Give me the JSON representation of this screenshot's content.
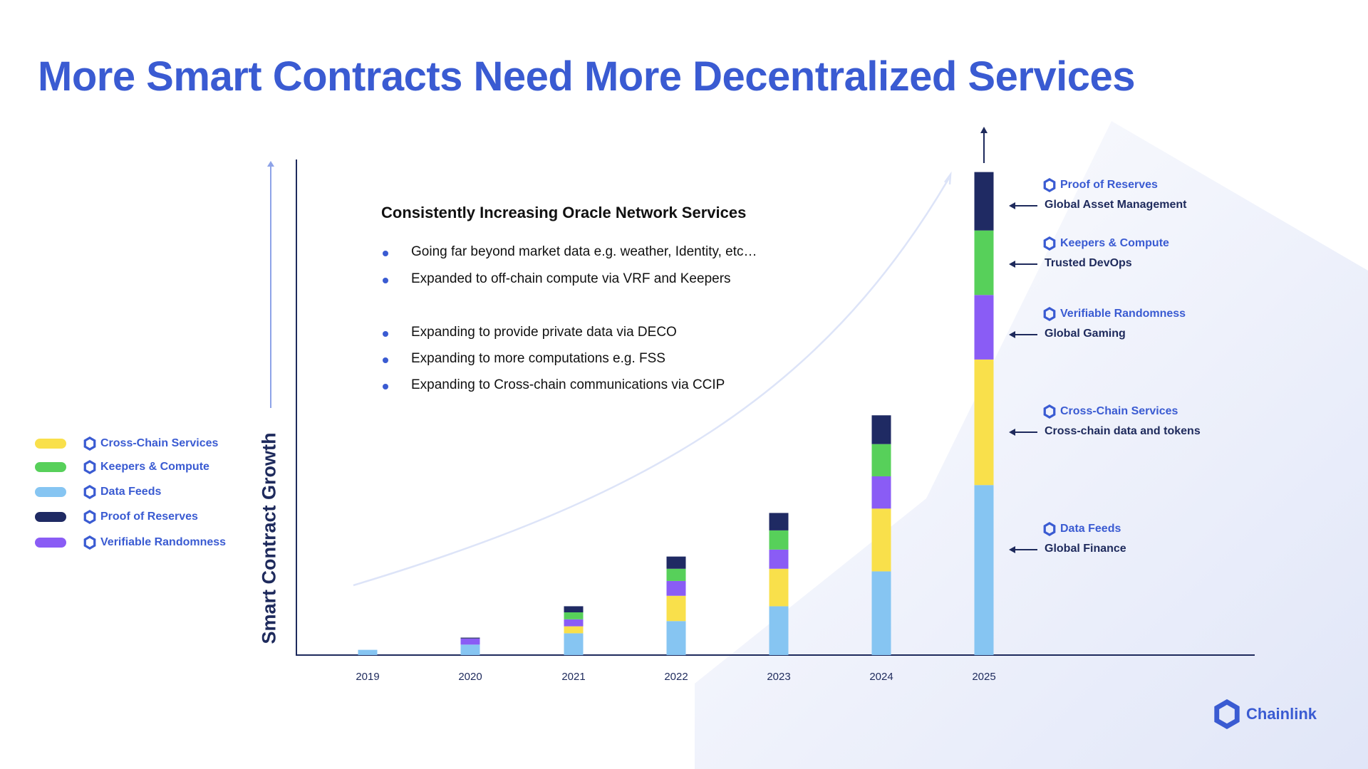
{
  "title": "More Smart Contracts Need More Decentralized Services",
  "colors": {
    "brand": "#3a5bd2",
    "axis": "#1e2a5c",
    "Cross-Chain Services": "#f9e04b",
    "Keepers & Compute": "#57d05a",
    "Data Feeds": "#86c5f2",
    "Proof of Reserves": "#1f2a63",
    "Verifiable Randomness": "#8a5cf5"
  },
  "legend": [
    {
      "label": "Cross-Chain Services",
      "icon": "chainlink-hexagon-icon"
    },
    {
      "label": "Keepers & Compute",
      "icon": "chainlink-hexagon-icon"
    },
    {
      "label": "Data Feeds",
      "icon": "chainlink-hexagon-icon"
    },
    {
      "label": "Proof of Reserves",
      "icon": "chainlink-hexagon-icon"
    },
    {
      "label": "Verifiable Randomness",
      "icon": "chainlink-hexagon-icon"
    }
  ],
  "textblock": {
    "heading": "Consistently Increasing Oracle Network Services",
    "bullets": [
      "Going far beyond market data e.g. weather, Identity, etc…",
      "Expanded to off-chain compute via VRF and Keepers",
      "Expanding to provide private data via DECO",
      "Expanding to more computations e.g. FSS",
      "Expanding to Cross-chain communications via CCIP"
    ]
  },
  "annotations": [
    {
      "service": "Proof of Reserves",
      "use": "Global Asset Management"
    },
    {
      "service": "Keepers & Compute",
      "use": "Trusted DevOps"
    },
    {
      "service": "Verifiable Randomness",
      "use": "Global Gaming"
    },
    {
      "service": "Cross-Chain Services",
      "use": "Cross-chain data and tokens"
    },
    {
      "service": "Data Feeds",
      "use": "Global Finance"
    }
  ],
  "logo": {
    "text": "Chainlink",
    "icon": "chainlink-hexagon-icon"
  },
  "chart_data": {
    "type": "bar",
    "stacked": true,
    "ylabel": "Smart Contract Growth",
    "xlabel": "",
    "y_ticks_shown": false,
    "grid": false,
    "legend_placement": "left",
    "categories": [
      "2019",
      "2020",
      "2021",
      "2022",
      "2023",
      "2024",
      "2025"
    ],
    "series": [
      {
        "name": "Data Feeds",
        "values": [
          6,
          12,
          25,
          39,
          56,
          96,
          195
        ]
      },
      {
        "name": "Cross-Chain Services",
        "values": [
          0,
          0,
          8,
          29,
          43,
          72,
          144
        ]
      },
      {
        "name": "Verifiable Randomness",
        "values": [
          0,
          7,
          8,
          17,
          22,
          37,
          74
        ]
      },
      {
        "name": "Keepers & Compute",
        "values": [
          0,
          0,
          8,
          14,
          22,
          37,
          74
        ]
      },
      {
        "name": "Proof of Reserves",
        "values": [
          0,
          1,
          7,
          14,
          20,
          33,
          67
        ]
      }
    ],
    "ylim": [
      0,
      560
    ]
  }
}
